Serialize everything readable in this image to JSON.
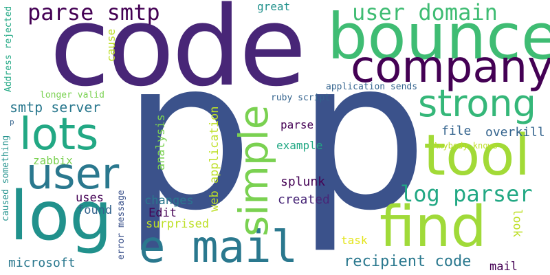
{
  "words": {
    "code": "code",
    "p": "p",
    "bounce": "bounce",
    "company": "company",
    "user": "user",
    "log": "log",
    "lots": "lots",
    "tool": "tool",
    "find": "find",
    "simple": "simple",
    "strong": "strong",
    "e_mail": "e mail",
    "parse_smtp": "parse smtp",
    "user_domain": "user domain",
    "log_parser": "log parser",
    "recipient_code": "recipient code",
    "smtp_server": "smtp server",
    "microsoft": "microsoft",
    "uses": "uses",
    "found": "found",
    "changes": "changes",
    "edit": "Edit",
    "surprised": "surprised",
    "splunk": "splunk",
    "created": "created",
    "parse": "parse",
    "example": "example",
    "file": "file",
    "overkill": "overkill",
    "zabbix": "zabbix",
    "task": "task",
    "mail": "mail",
    "look": "look",
    "great": "great",
    "cause": "cause",
    "longer_valid": "longer valid",
    "application_sends": "application sends",
    "ruby_script": "ruby script",
    "anybody_knows": "Anybody knows",
    "analysis": "analysis",
    "web_application": "web application",
    "error_message": "error message",
    "address_rejected": "Address rejected",
    "caused_something": "caused something",
    "p_small": "p"
  },
  "palette": {
    "deep_purple": "#440154",
    "indigo": "#482677",
    "slate_blue": "#3b528b",
    "steel_blue": "#33638d",
    "teal_blue": "#2a788e",
    "teal": "#21918c",
    "sea_green": "#22a884",
    "green": "#44bf70",
    "lime": "#7ad151",
    "yellow_green": "#bddf26",
    "yellow": "#e3e418"
  }
}
